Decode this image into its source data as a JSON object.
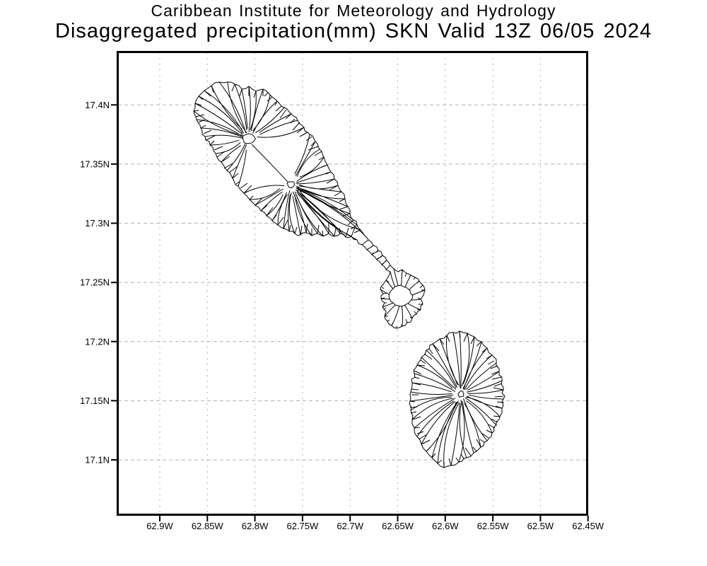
{
  "title": {
    "line1": "Caribbean Institute for Meteorology and Hydrology",
    "line2": "Disaggregated precipitation(mm) SKN Valid 13Z 06/05 2024"
  },
  "axes": {
    "lat_tick_labels": [
      "17.4N",
      "17.35N",
      "17.3N",
      "17.25N",
      "17.2N",
      "17.15N",
      "17.1N"
    ],
    "lon_tick_labels": [
      "62.9W",
      "62.85W",
      "62.8W",
      "62.75W",
      "62.7W",
      "62.65W",
      "62.6W",
      "62.55W",
      "62.5W",
      "62.45W"
    ]
  },
  "colors": {
    "background": "#ffffff",
    "text": "#000000",
    "frame": "#000000",
    "grid": "#b0b0b0",
    "coastline": "#000000",
    "land": "#ffffff"
  }
}
